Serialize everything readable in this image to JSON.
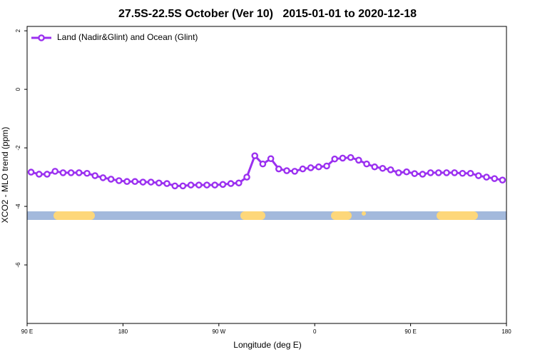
{
  "chart_data": {
    "type": "line",
    "title": "27.5S-22.5S October (Ver 10)   2015-01-01 to 2020-12-18",
    "x_label": "Longitude (deg E)",
    "y_label": "XCO2 - MLO trend (ppm)",
    "x": [
      93.75,
      101.25,
      108.75,
      116.25,
      123.75,
      131.25,
      138.75,
      146.25,
      153.75,
      161.25,
      168.75,
      176.25,
      183.75,
      191.25,
      198.75,
      206.25,
      213.75,
      221.25,
      228.75,
      236.25,
      243.75,
      251.25,
      258.75,
      266.25,
      273.75,
      281.25,
      288.75,
      296.25,
      303.75,
      311.25,
      318.75,
      326.25,
      333.75,
      341.25,
      348.75,
      356.25,
      363.75,
      371.25,
      378.75,
      386.25,
      393.75,
      401.25,
      408.75,
      416.25,
      423.75,
      431.25,
      438.75,
      446.25,
      453.75,
      461.25,
      468.75,
      476.25,
      483.75,
      491.25,
      498.75,
      506.25,
      513.75,
      521.25,
      528.75,
      536.25
    ],
    "series": [
      {
        "name": "Land (Nadir&Glint) and Ocean (Glint)",
        "color": "#9b30f0",
        "values": [
          -2.83,
          -2.9,
          -2.9,
          -2.8,
          -2.85,
          -2.85,
          -2.85,
          -2.87,
          -2.95,
          -3.02,
          -3.07,
          -3.12,
          -3.15,
          -3.15,
          -3.17,
          -3.17,
          -3.2,
          -3.22,
          -3.3,
          -3.3,
          -3.27,
          -3.27,
          -3.27,
          -3.27,
          -3.25,
          -3.22,
          -3.2,
          -3.0,
          -2.27,
          -2.55,
          -2.37,
          -2.72,
          -2.78,
          -2.8,
          -2.72,
          -2.68,
          -2.65,
          -2.62,
          -2.38,
          -2.35,
          -2.33,
          -2.42,
          -2.55,
          -2.65,
          -2.7,
          -2.75,
          -2.85,
          -2.82,
          -2.88,
          -2.9,
          -2.85,
          -2.85,
          -2.85,
          -2.85,
          -2.87,
          -2.87,
          -2.95,
          -3.0,
          -3.05,
          -3.1
        ]
      }
    ],
    "xlim": [
      90,
      540
    ],
    "xticks": [
      {
        "value": 90,
        "label": "90 E"
      },
      {
        "value": 180,
        "label": "180"
      },
      {
        "value": 270,
        "label": "90 W"
      },
      {
        "value": 360,
        "label": "0"
      },
      {
        "value": 450,
        "label": "90 E"
      },
      {
        "value": 540,
        "label": "180"
      }
    ],
    "ylim": [
      -8,
      2.15
    ],
    "yticks": [
      2,
      0,
      -2,
      -4,
      -6
    ],
    "legend": "top-left"
  }
}
